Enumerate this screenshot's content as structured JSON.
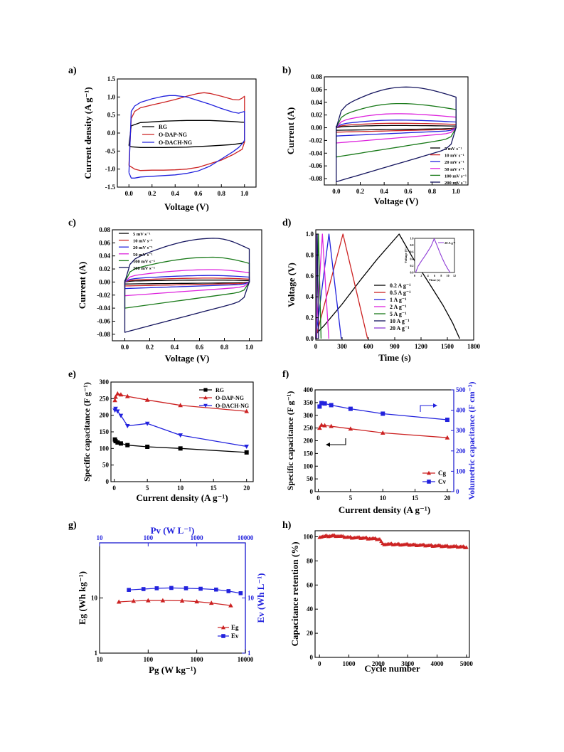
{
  "chart_data": [
    {
      "panel": "a)",
      "type": "line",
      "xlabel": "Voltage (V)",
      "ylabel": "Current density (A g⁻¹)",
      "xlim": [
        -0.1,
        1.1
      ],
      "ylim": [
        -1.5,
        1.5
      ],
      "xticks": [
        0.0,
        0.2,
        0.4,
        0.6,
        0.8,
        1.0
      ],
      "yticks": [
        -1.5,
        -1.0,
        -0.5,
        0.0,
        0.5,
        1.0,
        1.5
      ],
      "legend": "center-left",
      "series": [
        {
          "name": "RG",
          "color": "#000000",
          "x": [
            0.0,
            0.02,
            0.1,
            0.3,
            0.5,
            0.7,
            0.9,
            0.98,
            1.0,
            1.0,
            0.98,
            0.9,
            0.7,
            0.5,
            0.3,
            0.1,
            0.02,
            0.0
          ],
          "y": [
            -0.35,
            0.2,
            0.29,
            0.33,
            0.35,
            0.35,
            0.32,
            0.3,
            0.3,
            -0.25,
            -0.28,
            -0.32,
            -0.36,
            -0.39,
            -0.4,
            -0.4,
            -0.38,
            -0.35
          ]
        },
        {
          "name": "O-DAP-NG",
          "color": "#cc2222",
          "x": [
            0.0,
            0.02,
            0.05,
            0.1,
            0.2,
            0.3,
            0.4,
            0.5,
            0.6,
            0.65,
            0.7,
            0.8,
            0.9,
            0.95,
            0.98,
            1.0,
            1.0,
            0.98,
            0.9,
            0.8,
            0.7,
            0.6,
            0.5,
            0.4,
            0.3,
            0.2,
            0.1,
            0.05,
            0.0
          ],
          "y": [
            -0.9,
            0.4,
            0.6,
            0.7,
            0.78,
            0.85,
            0.93,
            1.02,
            1.1,
            1.12,
            1.1,
            1.02,
            0.93,
            0.92,
            0.97,
            1.02,
            -0.25,
            -0.45,
            -0.6,
            -0.75,
            -0.85,
            -0.95,
            -1.0,
            -1.02,
            -1.03,
            -1.03,
            -1.04,
            -1.0,
            -0.9
          ]
        },
        {
          "name": "O-DACH-NG",
          "color": "#2222dd",
          "x": [
            0.0,
            0.02,
            0.05,
            0.1,
            0.15,
            0.2,
            0.3,
            0.35,
            0.4,
            0.5,
            0.6,
            0.7,
            0.8,
            0.9,
            0.95,
            1.0,
            1.0,
            0.98,
            0.95,
            0.9,
            0.8,
            0.7,
            0.6,
            0.5,
            0.4,
            0.3,
            0.2,
            0.1,
            0.05,
            0.02,
            0.0
          ],
          "y": [
            -1.1,
            0.6,
            0.75,
            0.85,
            0.9,
            0.95,
            1.02,
            1.04,
            1.04,
            1.0,
            0.9,
            0.8,
            0.68,
            0.58,
            0.55,
            0.6,
            -0.2,
            -0.3,
            -0.4,
            -0.52,
            -0.72,
            -0.92,
            -1.05,
            -1.12,
            -1.16,
            -1.18,
            -1.2,
            -1.22,
            -1.25,
            -1.25,
            -1.1
          ]
        }
      ]
    },
    {
      "panel": "b)",
      "type": "line",
      "xlabel": "Voltage (V)",
      "ylabel": "Current (A)",
      "xlim": [
        -0.1,
        1.1
      ],
      "ylim": [
        -0.09,
        0.08
      ],
      "xticks": [
        0.0,
        0.2,
        0.4,
        0.6,
        0.8,
        1.0
      ],
      "yticks": [
        -0.08,
        -0.06,
        -0.04,
        -0.02,
        0.0,
        0.02,
        0.04,
        0.06,
        0.08
      ],
      "legend": "lower-right",
      "series": [
        {
          "name": "5 mV s⁻¹",
          "color": "#000000",
          "pos": 0.0035,
          "neg": -0.004,
          "peakx": 0.5
        },
        {
          "name": "10 mV s⁻¹",
          "color": "#cc2222",
          "pos": 0.007,
          "neg": -0.007,
          "peakx": 0.5
        },
        {
          "name": "20 mV s⁻¹",
          "color": "#2222dd",
          "pos": 0.012,
          "neg": -0.013,
          "peakx": 0.5
        },
        {
          "name": "50 mV s⁻¹",
          "color": "#dd22dd",
          "pos": 0.022,
          "neg": -0.024,
          "peakx": 0.5
        },
        {
          "name": "100 mV s⁻¹",
          "color": "#1a7a1a",
          "pos": 0.038,
          "neg": -0.046,
          "peakx": 0.52
        },
        {
          "name": "200 mV s⁻¹",
          "color": "#14145e",
          "pos": 0.064,
          "neg": -0.085,
          "peakx": 0.58
        }
      ]
    },
    {
      "panel": "c)",
      "type": "line",
      "xlabel": "Voltage (V)",
      "ylabel": "Current (A)",
      "xlim": [
        -0.1,
        1.1
      ],
      "ylim": [
        -0.09,
        0.08
      ],
      "xticks": [
        0.0,
        0.2,
        0.4,
        0.6,
        0.8,
        1.0
      ],
      "yticks": [
        -0.08,
        -0.06,
        -0.04,
        -0.02,
        0.0,
        0.02,
        0.04,
        0.06,
        0.08
      ],
      "legend": "top-left",
      "series": [
        {
          "name": "5 mV s⁻¹",
          "color": "#000000",
          "pos": 0.003,
          "neg": -0.003,
          "peakx": 0.7
        },
        {
          "name": "10 mV s⁻¹",
          "color": "#cc2222",
          "pos": 0.006,
          "neg": -0.006,
          "peakx": 0.7
        },
        {
          "name": "20 mV s⁻¹",
          "color": "#2222dd",
          "pos": 0.01,
          "neg": -0.01,
          "peakx": 0.7
        },
        {
          "name": "50 mV s⁻¹",
          "color": "#dd22dd",
          "pos": 0.019,
          "neg": -0.021,
          "peakx": 0.7
        },
        {
          "name": "100 mV s⁻¹",
          "color": "#1a7a1a",
          "pos": 0.038,
          "neg": -0.04,
          "peakx": 0.7
        },
        {
          "name": "200 mV s⁻¹",
          "color": "#14145e",
          "pos": 0.067,
          "neg": -0.077,
          "peakx": 0.72
        }
      ]
    },
    {
      "panel": "d)",
      "type": "line",
      "xlabel": "Time (s)",
      "ylabel": "Voltage (V)",
      "xlim": [
        0,
        1800
      ],
      "ylim": [
        0.0,
        1.0
      ],
      "xticks": [
        0,
        300,
        600,
        900,
        1200,
        1500,
        1800
      ],
      "yticks": [
        0.0,
        0.2,
        0.4,
        0.6,
        0.8,
        1.0
      ],
      "legend": "lower-center",
      "series": [
        {
          "name": "0.2 A g⁻¹",
          "color": "#000000",
          "charge": 950,
          "discharge": 1640,
          "bend": true
        },
        {
          "name": "0.5 A g⁻¹",
          "color": "#cc2222",
          "charge": 310,
          "discharge": 590
        },
        {
          "name": "1  A g⁻¹",
          "color": "#2222dd",
          "charge": 150,
          "discharge": 290
        },
        {
          "name": "2  A g⁻¹",
          "color": "#dd22dd",
          "charge": 75,
          "discharge": 148
        },
        {
          "name": "5  A g⁻¹",
          "color": "#1a7a1a",
          "charge": 30,
          "discharge": 60
        },
        {
          "name": "10 A g⁻¹",
          "color": "#14145e",
          "charge": 16,
          "discharge": 32
        },
        {
          "name": "20 A g⁻¹",
          "color": "#8e3bd6",
          "charge": 6,
          "discharge": 12
        }
      ],
      "inset": {
        "xlabel": "Time (s)",
        "ylabel": "Voltage (V)",
        "xlim": [
          0,
          12
        ],
        "ylim": [
          0.0,
          1.0
        ],
        "xticks": [
          0,
          2,
          4,
          6,
          8,
          10,
          12
        ],
        "yticks": [
          0.0,
          0.2,
          0.4,
          0.6,
          0.8,
          1.0
        ],
        "series_name": "20 A g⁻¹",
        "color": "#8e3bd6",
        "x": [
          0.3,
          1,
          2,
          3,
          4,
          5,
          5.9,
          6.8,
          7.6,
          8.4,
          9.2,
          10.0,
          10.7
        ],
        "y": [
          0.0,
          0.18,
          0.33,
          0.47,
          0.62,
          0.78,
          0.99,
          0.78,
          0.58,
          0.4,
          0.24,
          0.1,
          0.0
        ]
      }
    },
    {
      "panel": "e)",
      "type": "line",
      "xlabel": "Current density (A g⁻¹)",
      "ylabel": "Specific capacitance (F g⁻¹)",
      "xlim": [
        -0.5,
        21
      ],
      "ylim": [
        0,
        300
      ],
      "xticks": [
        0,
        5,
        10,
        15,
        20
      ],
      "yticks": [
        0,
        50,
        100,
        150,
        200,
        250,
        300
      ],
      "legend": "top-right",
      "series": [
        {
          "name": "RG",
          "color": "#000000",
          "marker": "square",
          "x": [
            0.1,
            0.2,
            0.5,
            1,
            2,
            5,
            10,
            20
          ],
          "y": [
            127,
            122,
            118,
            115,
            110,
            105,
            100,
            88
          ]
        },
        {
          "name": "O-DAP-NG",
          "color": "#cc2222",
          "marker": "triangle-up",
          "x": [
            0.1,
            0.2,
            0.5,
            1,
            2,
            5,
            10,
            20
          ],
          "y": [
            245,
            255,
            265,
            262,
            257,
            246,
            230,
            212
          ]
        },
        {
          "name": "O-DACH-NG",
          "color": "#2222dd",
          "marker": "triangle-down",
          "x": [
            0.1,
            0.2,
            0.5,
            1,
            2,
            5,
            10,
            20
          ],
          "y": [
            215,
            220,
            212,
            199,
            168,
            175,
            140,
            106
          ]
        }
      ]
    },
    {
      "panel": "f)",
      "type": "line",
      "xlabel": "Current density (A g⁻¹)",
      "ylabel": "Specific capacitance (F g⁻¹)",
      "y2label": "Volumetric capacitance (F cm⁻³)",
      "xlim": [
        -0.5,
        21
      ],
      "ylim": [
        0,
        400
      ],
      "y2lim": [
        0,
        500
      ],
      "xticks": [
        0,
        5,
        10,
        15,
        20
      ],
      "yticks": [
        0,
        50,
        100,
        150,
        200,
        250,
        300,
        350,
        400
      ],
      "y2ticks": [
        0,
        100,
        200,
        300,
        400,
        500
      ],
      "legend": "lower-right",
      "series": [
        {
          "name": "Cg",
          "color": "#cc2222",
          "marker": "triangle-up",
          "axis": "left",
          "x": [
            0.2,
            0.5,
            1,
            2,
            5,
            10,
            20
          ],
          "y": [
            250,
            262,
            260,
            257,
            247,
            231,
            212
          ]
        },
        {
          "name": "Cv",
          "color": "#2222dd",
          "marker": "square",
          "axis": "right",
          "x": [
            0.2,
            0.5,
            1,
            2,
            5,
            10,
            20
          ],
          "y": [
            418,
            435,
            433,
            425,
            407,
            383,
            353
          ]
        }
      ]
    },
    {
      "panel": "g)",
      "type": "scatter",
      "xlabel": "Pg (W kg⁻¹)",
      "ylabel": "Eg (Wh kg⁻¹)",
      "x2label": "Pv (W L⁻¹)",
      "y2label": "Ev (Wh L⁻¹)",
      "xscale": "log",
      "yscale": "log",
      "xlim": [
        10,
        10000
      ],
      "ylim": [
        1,
        100
      ],
      "x2lim": [
        10,
        10000
      ],
      "y2lim": [
        1,
        100
      ],
      "xtick_labels": [
        "10",
        "100",
        "1000",
        "10000"
      ],
      "ytick_labels": [
        "1",
        "10"
      ],
      "x2tick_labels": [
        "10",
        "100",
        "1000",
        "10000"
      ],
      "y2tick_labels": [
        "1",
        "10"
      ],
      "legend": "lower-right",
      "series": [
        {
          "name": "Eg",
          "color": "#cc2222",
          "marker": "triangle-up",
          "axis": "bottom-left",
          "x": [
            25,
            50,
            100,
            200,
            500,
            1000,
            2000,
            5000
          ],
          "y": [
            8.5,
            8.8,
            9.0,
            9.0,
            8.9,
            8.6,
            8.1,
            7.3
          ]
        },
        {
          "name": "Ev",
          "color": "#2222dd",
          "marker": "square",
          "axis": "top-right",
          "x": [
            40,
            80,
            150,
            300,
            600,
            1200,
            2500,
            4500,
            8000
          ],
          "y": [
            14.0,
            14.5,
            15.0,
            15.2,
            15.0,
            14.7,
            14.2,
            13.3,
            12.2
          ]
        }
      ]
    },
    {
      "panel": "h)",
      "type": "scatter",
      "xlabel": "Cycle number",
      "ylabel": "Capacitance retention (%)",
      "xlim": [
        -150,
        5100
      ],
      "ylim": [
        0,
        105
      ],
      "xticks": [
        0,
        1000,
        2000,
        3000,
        4000,
        5000
      ],
      "yticks": [
        0,
        20,
        40,
        60,
        80,
        100
      ],
      "series": [
        {
          "name": "",
          "color": "#cc2222",
          "marker": "triangle-up",
          "segments": [
            [
              0,
              100
            ],
            [
              500,
              101
            ],
            [
              1000,
              99.5
            ],
            [
              1500,
              99
            ],
            [
              2050,
              98
            ],
            [
              2150,
              94
            ],
            [
              3000,
              93.5
            ],
            [
              4000,
              92.5
            ],
            [
              5000,
              91.5
            ]
          ]
        }
      ]
    }
  ]
}
